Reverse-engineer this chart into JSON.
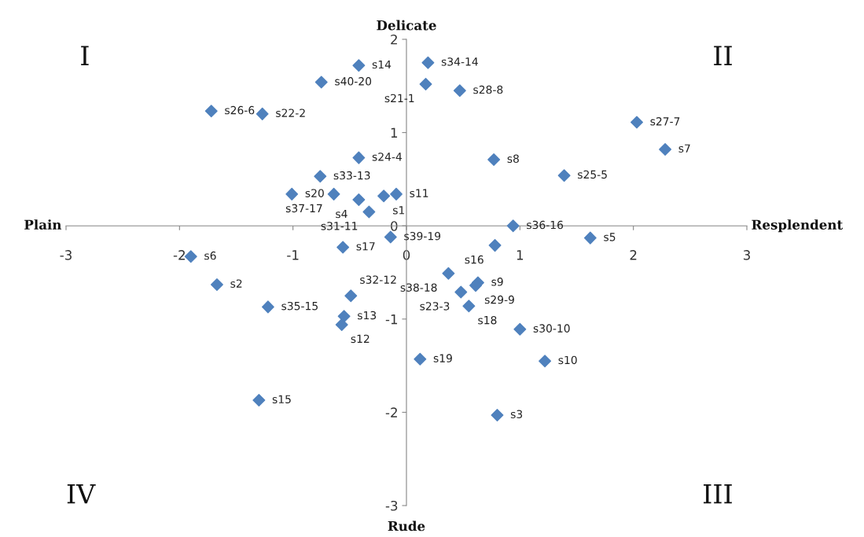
{
  "chart_data": {
    "type": "scatter",
    "marker": "diamond",
    "grid": false,
    "xlim": [
      -3,
      3
    ],
    "xticks": [
      -3,
      -2,
      -1,
      0,
      1,
      2,
      3
    ],
    "ylim": [
      -3,
      2
    ],
    "yticks": [
      -3,
      -2,
      -1,
      0,
      1,
      2
    ],
    "annotations": [
      "Delicate",
      "Rude",
      "Plain",
      "Resplendent",
      "I",
      "II",
      "III",
      "IV"
    ],
    "series": [
      {
        "color": "#4f81bd",
        "x": [
          -0.42,
          0.19,
          -0.75,
          0.17,
          0.47,
          -1.72,
          -1.27,
          2.03,
          2.28,
          -0.42,
          0.77,
          -0.76,
          1.39,
          -1.01,
          -0.64,
          -0.2,
          -0.09,
          -0.42,
          -0.33,
          0.94,
          -0.14,
          1.62,
          -0.56,
          0.78,
          -1.9,
          0.37,
          0.63,
          0.61,
          0.48,
          -1.67,
          -0.49,
          -1.22,
          0.55,
          -0.55,
          -0.57,
          1.0,
          0.12,
          1.22,
          -1.3,
          0.8
        ],
        "values": [
          1.72,
          1.75,
          1.54,
          1.52,
          1.45,
          1.23,
          1.2,
          1.11,
          0.82,
          0.73,
          0.71,
          0.53,
          0.54,
          0.34,
          0.34,
          0.32,
          0.34,
          0.28,
          0.15,
          0.0,
          -0.12,
          -0.13,
          -0.23,
          -0.21,
          -0.33,
          -0.51,
          -0.61,
          -0.64,
          -0.71,
          -0.63,
          -0.75,
          -0.87,
          -0.86,
          -0.97,
          -1.06,
          -1.11,
          -1.43,
          -1.45,
          -1.87,
          -2.03
        ],
        "value_labels": [
          "s14",
          "s34-14",
          "s40-20",
          "s21-1",
          "s28-8",
          "s26-6",
          "s22-2",
          "s27-7",
          "s7",
          "s24-4",
          "s8",
          "s33-13",
          "s25-5",
          "s20",
          "s37-17",
          "s1",
          "s11",
          "s4",
          "s31-11",
          "s36-16",
          "s39-19",
          "s5",
          "s17",
          "s16",
          "s6",
          "s38-18",
          "s9",
          "s29-9",
          "s23-3",
          "s2",
          "s32-12",
          "s35-15",
          "s18",
          "s13",
          "s12",
          "s30-10",
          "s19",
          "s10",
          "s15",
          "s3"
        ]
      }
    ]
  }
}
